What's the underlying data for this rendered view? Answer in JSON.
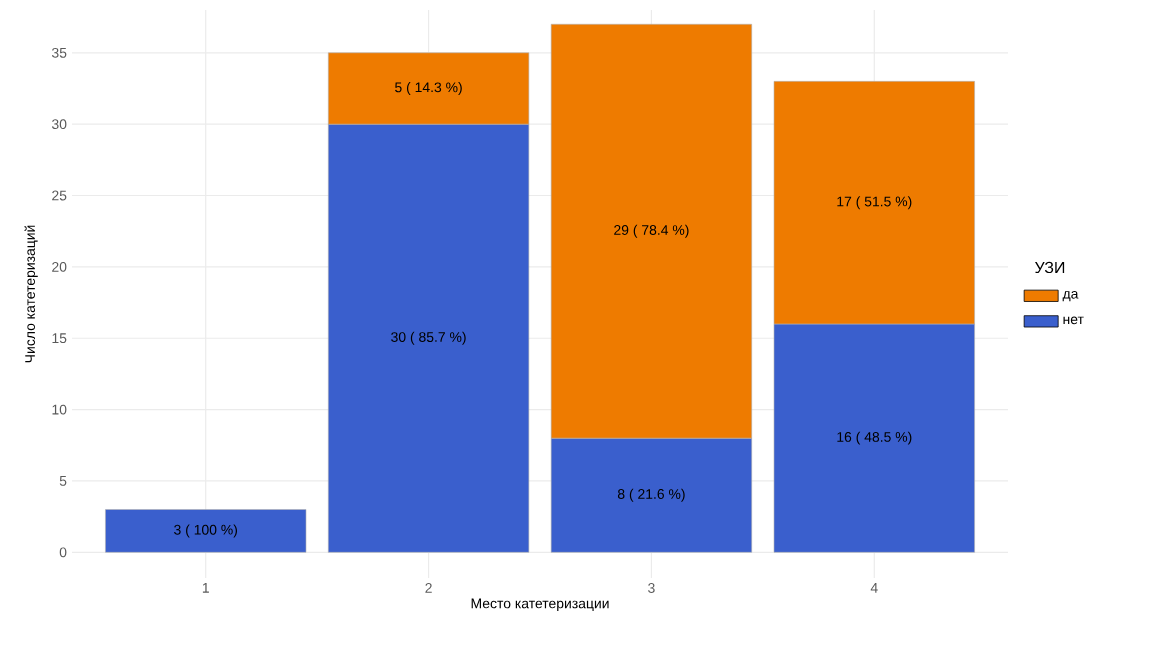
{
  "chart_data": {
    "type": "bar",
    "stacked": true,
    "xlabel": "Место катетеризации",
    "ylabel": "Число катетеризаций",
    "legend_title": "УЗИ",
    "categories": [
      "1",
      "2",
      "3",
      "4"
    ],
    "series": [
      {
        "name": "нет",
        "color": "#3a5fcd",
        "values": [
          3,
          30,
          8,
          16
        ],
        "value_labels": [
          "3 ( 100 %)",
          "30 ( 85.7 %)",
          "8 ( 21.6 %)",
          "16 ( 48.5 %)"
        ]
      },
      {
        "name": "да",
        "color": "#ee7b00",
        "values": [
          null,
          5,
          29,
          17
        ],
        "value_labels": [
          null,
          "5 ( 14.3 %)",
          "29 ( 78.4 %)",
          "17 ( 51.5 %)"
        ]
      }
    ],
    "ylim": [
      -1.8,
      38
    ],
    "yticks": [
      0,
      5,
      10,
      15,
      20,
      25,
      30,
      35
    ],
    "grid": true,
    "legend": "right"
  }
}
